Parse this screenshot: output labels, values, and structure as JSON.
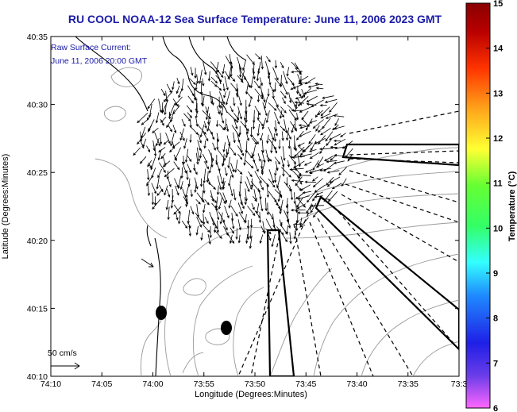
{
  "title": "RU COOL  NOAA-12  Sea Surface Temperature:  June 11, 2006 2023 GMT",
  "annotation": {
    "line1": "Raw Surface Current:",
    "line2": "June 11, 2006 20:00 GMT"
  },
  "scale_legend": {
    "label": "50 cm/s"
  },
  "x_axis": {
    "label": "Longitude (Degrees:Minutes)",
    "ticks": [
      "74:10",
      "74:05",
      "74:00",
      "73:55",
      "73:50",
      "73:45",
      "73:40",
      "73:35",
      "73:3"
    ]
  },
  "y_axis": {
    "label": "Latitude (Degrees:Minutes)",
    "ticks": [
      "40:35",
      "40:30",
      "40:25",
      "40:20",
      "40:15",
      "40:10"
    ]
  },
  "colorbar": {
    "label": "Temperature (°C)",
    "min": 6,
    "max": 15,
    "ticks": [
      "15",
      "14",
      "13",
      "12",
      "11",
      "10",
      "9",
      "8",
      "7",
      "6"
    ],
    "colors": [
      "#ff66ff",
      "#6a3de8",
      "#1f1fe6",
      "#1f8cff",
      "#33ffff",
      "#33ff66",
      "#66ff33",
      "#ffff33",
      "#ffa31a",
      "#ff3300",
      "#b80000",
      "#8a0000"
    ]
  },
  "colors": {
    "title": "#1a1aa8",
    "land": "#ffffff",
    "coastline": "#000000",
    "bathymetry": "#9a9a9a",
    "vectors": "#000000"
  }
}
